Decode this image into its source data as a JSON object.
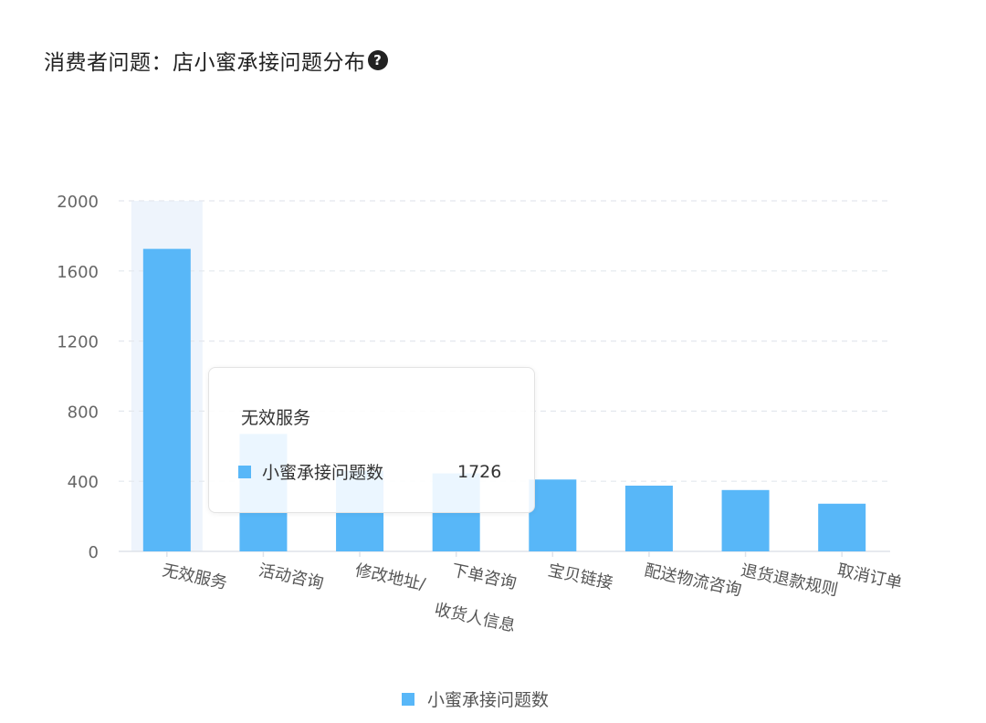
{
  "header": {
    "title": "消费者问题：店小蜜承接问题分布",
    "help_icon": "question-circle-icon"
  },
  "colors": {
    "bar": "#58b7f8",
    "hover_band": "#eef4fc",
    "grid": "#e4e8ee",
    "axis_text": "#666666",
    "category_text": "#555555"
  },
  "chart_data": {
    "type": "bar",
    "title": "消费者问题：店小蜜承接问题分布",
    "xlabel": "",
    "ylabel": "",
    "ylim": [
      0,
      2000
    ],
    "yticks": [
      "0",
      "400",
      "800",
      "1200",
      "1600",
      "2000"
    ],
    "grid": true,
    "legend_position": "bottom",
    "categories": [
      "无效服务",
      "活动咨询",
      "修改地址/收货人信息",
      "下单咨询",
      "宝贝链接",
      "配送物流咨询",
      "退货退款规则",
      "取消订单"
    ],
    "series": [
      {
        "name": "小蜜承接问题数",
        "values": [
          1726,
          670,
          460,
          445,
          410,
          375,
          350,
          272
        ]
      }
    ],
    "highlighted_category": "无效服务"
  },
  "tooltip": {
    "title": "无效服务",
    "series_name": "小蜜承接问题数",
    "value": "1726"
  },
  "legend": {
    "label": "小蜜承接问题数"
  }
}
